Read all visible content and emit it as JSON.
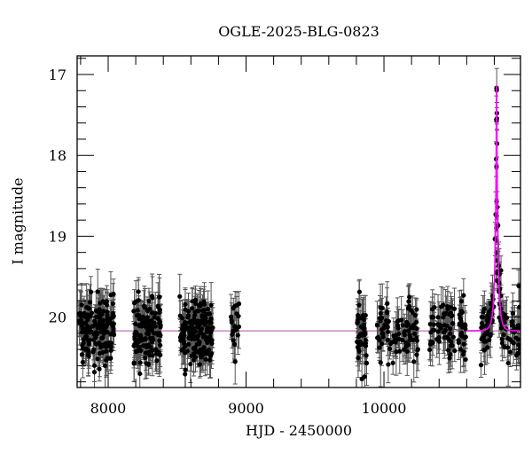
{
  "chart_data": {
    "type": "scatter",
    "title": "OGLE-2025-BLG-0823",
    "xlabel": "HJD - 2450000",
    "ylabel": "I magnitude",
    "xlim": [
      7775,
      10990
    ],
    "ylim": [
      20.87,
      16.77
    ],
    "y_inverted": true,
    "xticks": [
      8000,
      9000,
      10000
    ],
    "xtick_labels": [
      "8000",
      "9000",
      "10000"
    ],
    "yticks": [
      17,
      18,
      19,
      20
    ],
    "ytick_labels": [
      "17",
      "18",
      "19",
      "20"
    ],
    "x_minor_step": 200,
    "y_minor_step": 0.2,
    "grid": false,
    "colors": {
      "points": "#000000",
      "errorbars": "#555555",
      "model": "#ff00ff",
      "baseline": "#b04aa8"
    },
    "model": {
      "type": "point-lens microlensing fit",
      "t0": 10817,
      "u0": 0.061,
      "tE": 25,
      "baseline_mag": 20.17,
      "peak_mag": 17.13
    },
    "observing_seasons": [
      {
        "start": 7785,
        "end": 8045,
        "mean_mag": 20.17,
        "scatter": 0.2,
        "n": 160
      },
      {
        "start": 8185,
        "end": 8385,
        "mean_mag": 20.17,
        "scatter": 0.2,
        "n": 130
      },
      {
        "start": 8515,
        "end": 8760,
        "mean_mag": 20.17,
        "scatter": 0.2,
        "n": 170
      },
      {
        "start": 8890,
        "end": 8950,
        "mean_mag": 20.1,
        "scatter": 0.18,
        "n": 20
      },
      {
        "start": 9800,
        "end": 9875,
        "mean_mag": 20.15,
        "scatter": 0.22,
        "n": 45
      },
      {
        "start": 9950,
        "end": 10250,
        "mean_mag": 20.17,
        "scatter": 0.2,
        "n": 90
      },
      {
        "start": 10330,
        "end": 10600,
        "mean_mag": 20.15,
        "scatter": 0.2,
        "n": 90
      },
      {
        "start": 10700,
        "end": 10990,
        "mean_mag": 20.17,
        "scatter": 0.2,
        "n": 110
      }
    ],
    "peak_points": [
      {
        "x": 10816.5,
        "y": 17.17,
        "err": 0.02
      },
      {
        "x": 10816.8,
        "y": 17.57,
        "err": 0.02
      },
      {
        "x": 10816.3,
        "y": 18.14,
        "err": 0.03
      },
      {
        "x": 10816.9,
        "y": 18.57,
        "err": 0.03
      },
      {
        "x": 10816.6,
        "y": 18.75,
        "err": 0.04
      },
      {
        "x": 10816.2,
        "y": 18.9,
        "err": 0.04
      },
      {
        "x": 10817.3,
        "y": 19.05,
        "err": 0.05
      },
      {
        "x": 10815.8,
        "y": 19.2,
        "err": 0.06
      },
      {
        "x": 10818.2,
        "y": 19.3,
        "err": 0.07
      },
      {
        "x": 10814.5,
        "y": 19.45,
        "err": 0.08
      },
      {
        "x": 10819.5,
        "y": 19.55,
        "err": 0.1
      }
    ]
  }
}
